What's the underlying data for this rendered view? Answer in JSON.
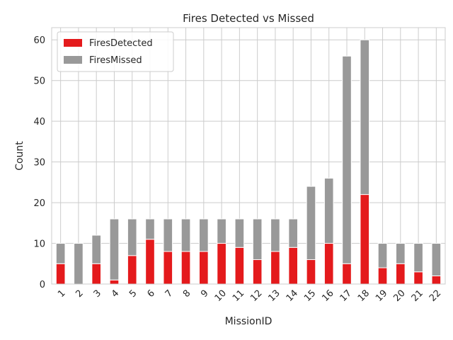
{
  "chart_data": {
    "type": "bar",
    "stacked": true,
    "title": "Fires Detected vs Missed",
    "xlabel": "MissionID",
    "ylabel": "Count",
    "ylim": [
      0,
      63
    ],
    "yticks": [
      0,
      10,
      20,
      30,
      40,
      50,
      60
    ],
    "grid": true,
    "legend_position": "top-left",
    "categories": [
      "1",
      "2",
      "3",
      "4",
      "5",
      "6",
      "7",
      "8",
      "9",
      "10",
      "11",
      "12",
      "13",
      "14",
      "15",
      "16",
      "17",
      "18",
      "19",
      "20",
      "21",
      "22"
    ],
    "series": [
      {
        "name": "FiresDetected",
        "color": "#e41a1c",
        "values": [
          5,
          0,
          5,
          1,
          7,
          11,
          8,
          8,
          8,
          10,
          9,
          6,
          8,
          9,
          6,
          10,
          5,
          22,
          4,
          5,
          3,
          2
        ]
      },
      {
        "name": "FiresMissed",
        "color": "#999999",
        "values": [
          5,
          10,
          7,
          15,
          9,
          5,
          8,
          8,
          8,
          6,
          7,
          10,
          8,
          7,
          18,
          16,
          51,
          38,
          6,
          5,
          7,
          8
        ]
      }
    ]
  }
}
